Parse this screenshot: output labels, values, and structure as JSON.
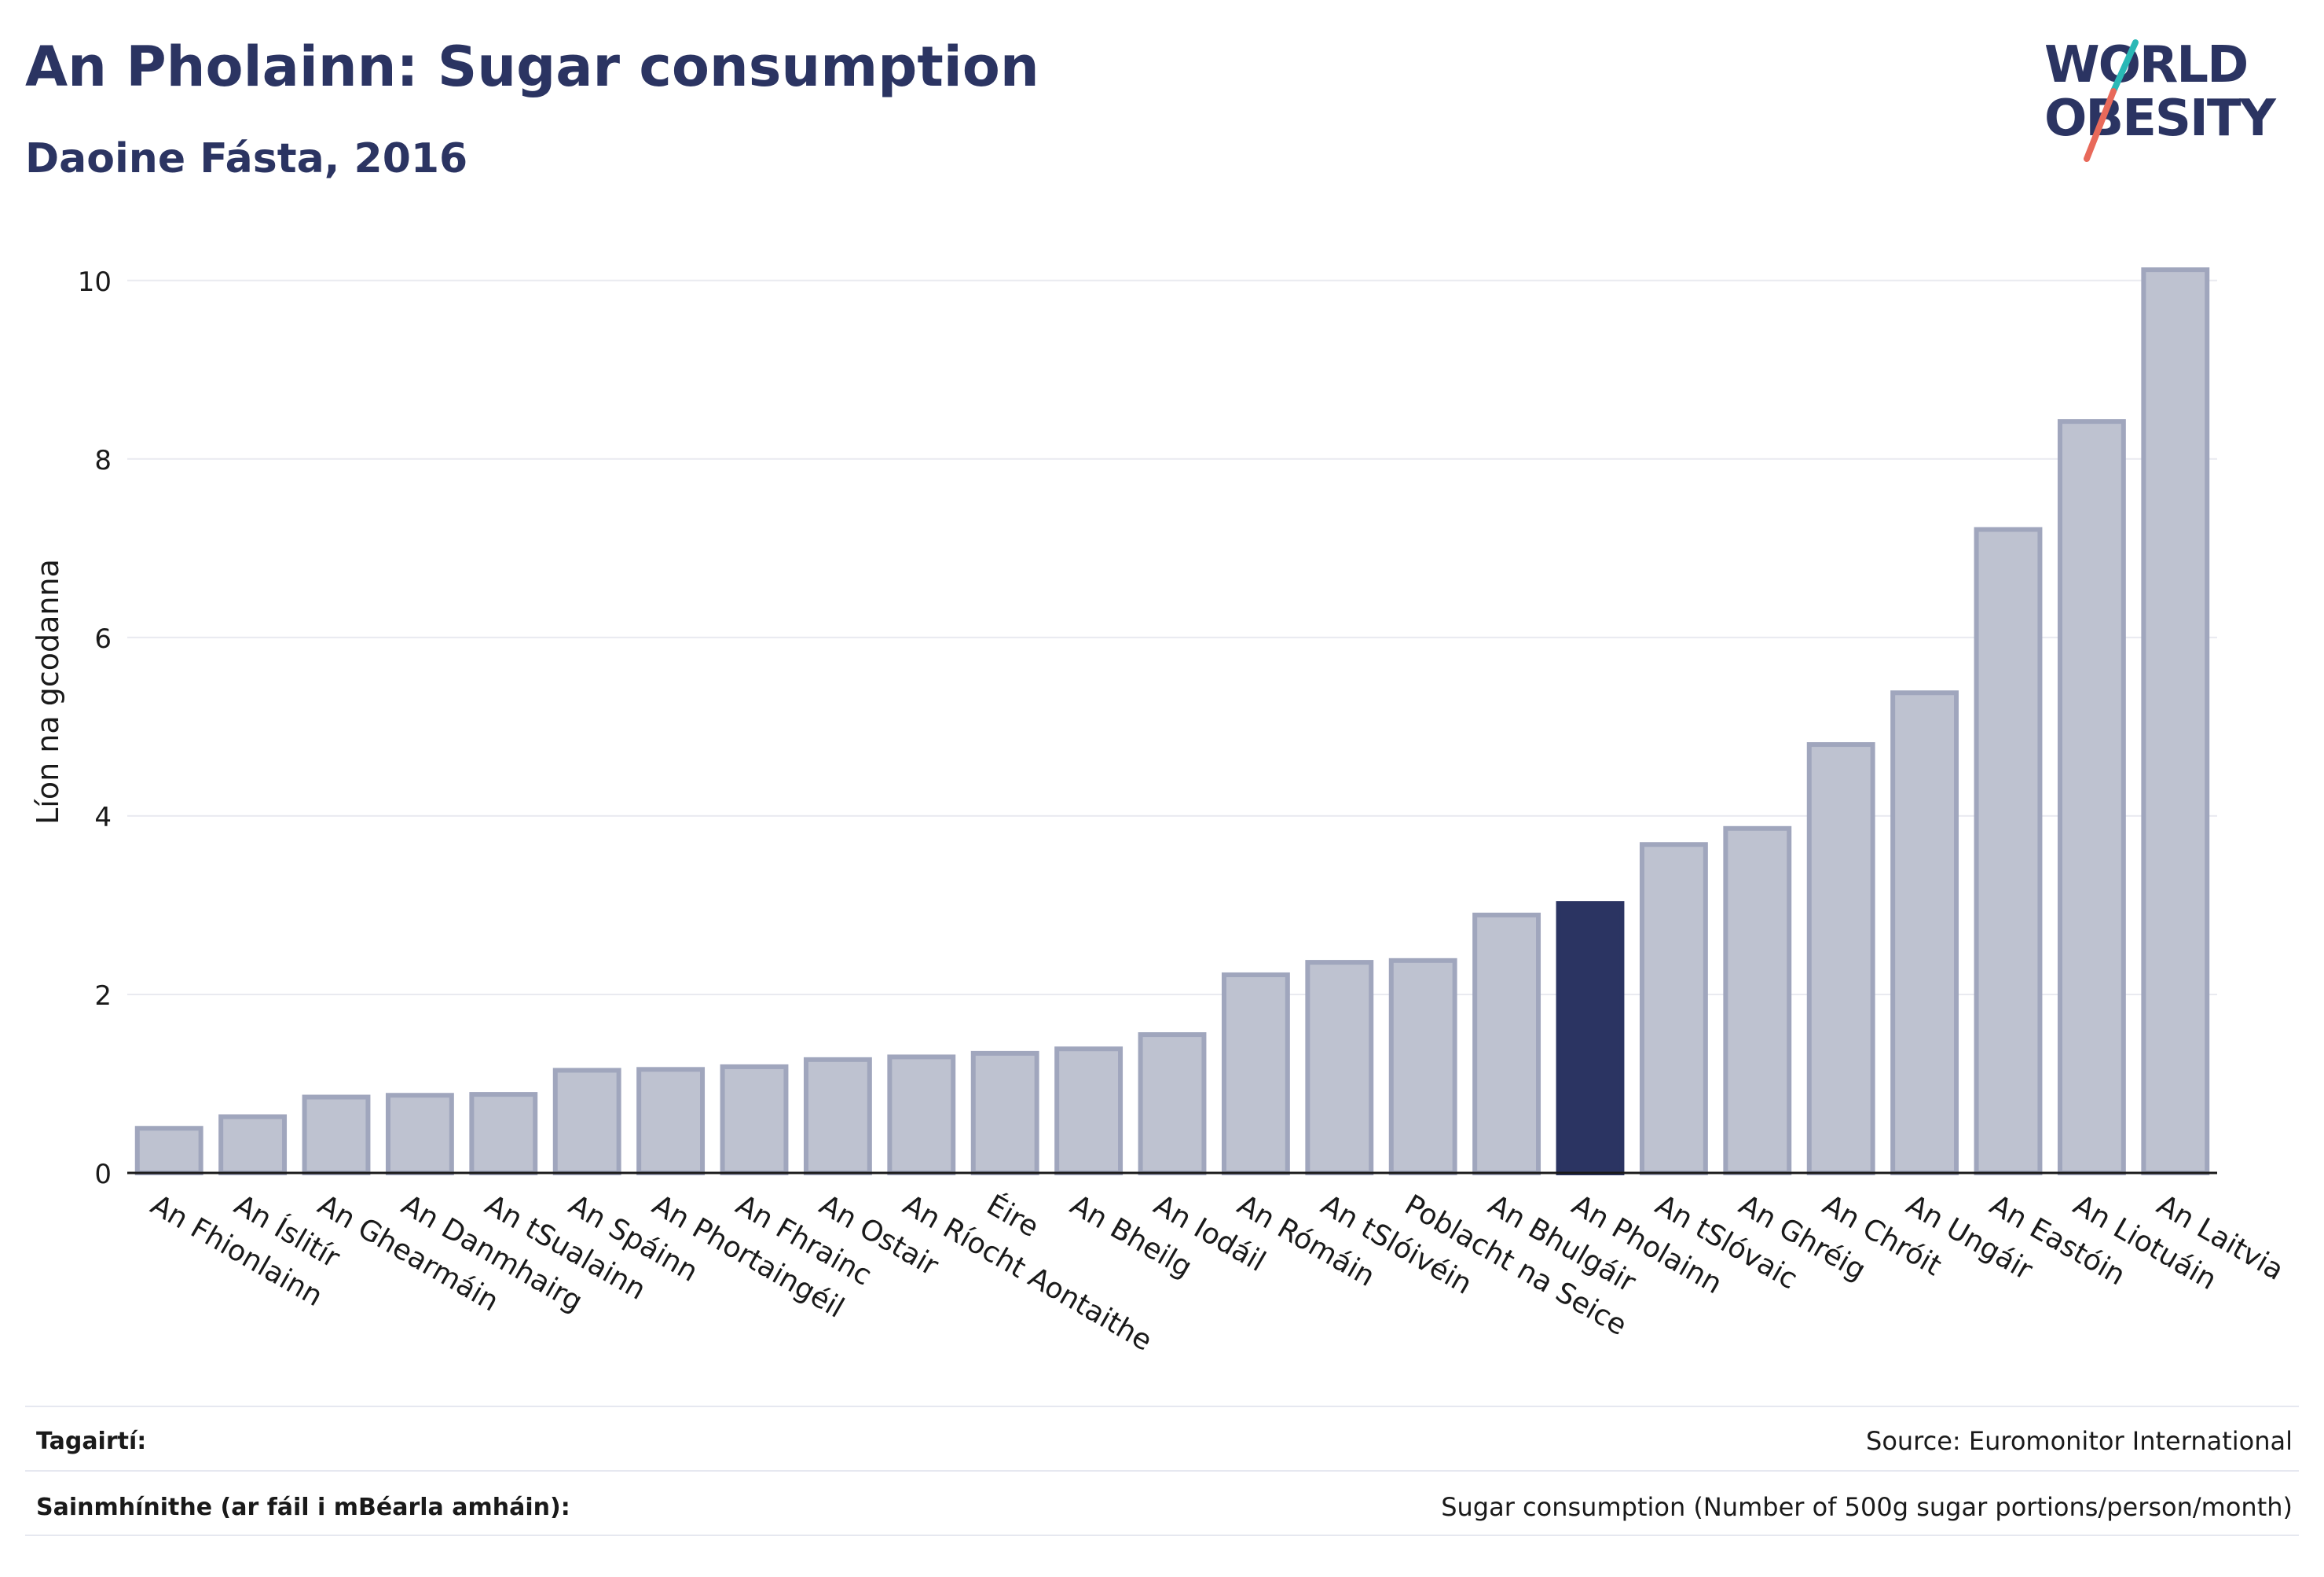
{
  "header": {
    "title": "An Pholainn: Sugar consumption",
    "subtitle": "Daoine Fásta, 2016"
  },
  "logo": {
    "line1": "WORLD",
    "line2": "OBESITY",
    "colors": {
      "text": "#2b3462",
      "slash_top": "#2ab8b6",
      "slash_bottom": "#e8695a"
    }
  },
  "chart_data": {
    "type": "bar",
    "ylabel": "Líon na gcodanna",
    "ylim": [
      0,
      10.5
    ],
    "yticks": [
      0,
      2,
      4,
      6,
      8,
      10
    ],
    "grid": true,
    "highlight": "An Pholainn",
    "categories": [
      "An Fhionlainn",
      "An Íslitír",
      "An Ghearmáin",
      "An Danmhairg",
      "An tSualainn",
      "An Spáinn",
      "An Phortaingéil",
      "An Fhrainc",
      "An Ostair",
      "An Ríocht Aontaithe",
      "Éire",
      "An Bheilg",
      "An Iodáil",
      "An Rómáin",
      "An tSlóivéin",
      "Poblacht na Seice",
      "An Bhulgáir",
      "An Pholainn",
      "An tSlóvaic",
      "An Ghréig",
      "An Chróit",
      "An Ungáir",
      "An Eastóin",
      "An Liotuáin",
      "An Laitvia"
    ],
    "values": [
      0.5,
      0.63,
      0.85,
      0.87,
      0.88,
      1.15,
      1.16,
      1.19,
      1.27,
      1.3,
      1.34,
      1.39,
      1.55,
      2.22,
      2.36,
      2.38,
      2.89,
      3.02,
      3.68,
      3.86,
      4.8,
      5.38,
      7.21,
      8.42,
      10.12
    ],
    "colors": {
      "bar": "#bec2d0",
      "bar_border": "#a0a6bd",
      "highlight": "#2b3462",
      "grid": "#e9eaf0",
      "axis": "#1a1a1a"
    }
  },
  "footer": {
    "references_label": "Tagairtí:",
    "references_value": "Source: Euromonitor International",
    "definitions_label": "Sainmhínithe (ar fáil i mBéarla amháin):",
    "definitions_value": "Sugar consumption (Number of 500g sugar portions/person/month)"
  }
}
